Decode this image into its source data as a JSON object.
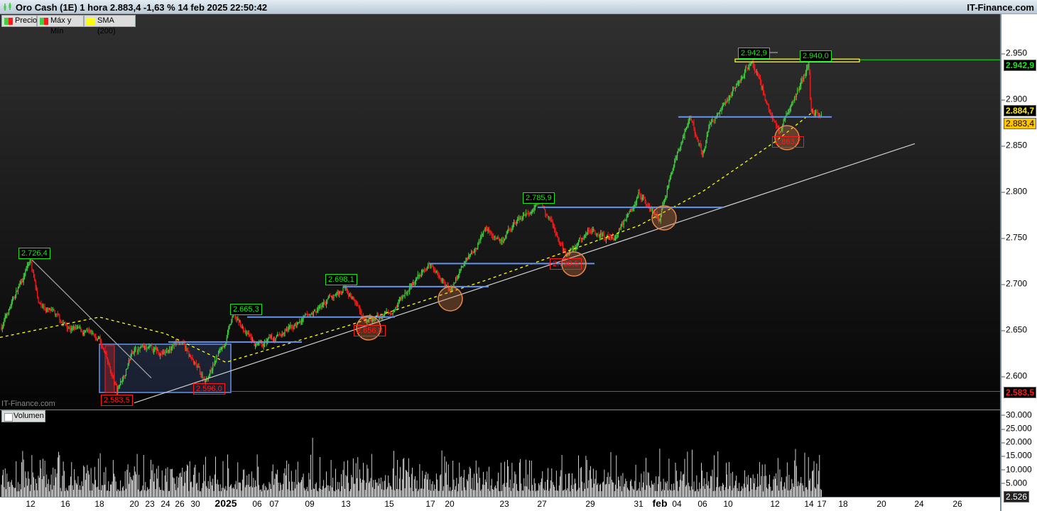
{
  "header": {
    "title": "Oro Cash (1E) 1 hora 2.883,4 -1,63 % 14 feb 2025 22:50:42",
    "brand": "IT-Finance.com",
    "icon": "candlestick-icon"
  },
  "legend": [
    {
      "label": "Precio",
      "colors": [
        "#3fcf3f",
        "#ff1a1a"
      ]
    },
    {
      "label": "Máx y Mín",
      "colors": [
        "#3fcf3f",
        "#ff1a1a"
      ]
    },
    {
      "label": "SMA (200)",
      "colors": [
        "#ffff00"
      ]
    }
  ],
  "watermark": "IT-Finance.com",
  "volume_legend": "Volumen",
  "price_tags": {
    "high_level": "2.942,9",
    "sma": "2.884,7",
    "last": "2.883,4",
    "low_level": "2.583,5",
    "volume_last": "2.526"
  },
  "colors": {
    "up": "#3fcf3f",
    "down": "#ff1a1a",
    "sma": "#ffff00",
    "support": "#6495ed",
    "high_line": "#19e619",
    "low_line": "#ff1a1a",
    "circle": "#e8884a"
  },
  "chart_data": {
    "type": "candlestick",
    "title": "Oro Cash (1E) 1 hora",
    "y_ticks": [
      "2.950",
      "2.900",
      "2.850",
      "2.800",
      "2.750",
      "2.700",
      "2.650",
      "2.600"
    ],
    "ylim": [
      2565,
      2970
    ],
    "volume_ticks": [
      "30.000",
      "25.000",
      "20.000",
      "15.000",
      "10.000",
      "5.000"
    ],
    "volume_ylim": [
      0,
      35000
    ],
    "x_ticks": [
      {
        "label": "12",
        "date": "2024-12-12"
      },
      {
        "label": "16",
        "date": "2024-12-16"
      },
      {
        "label": "18",
        "date": "2024-12-18"
      },
      {
        "label": "20",
        "date": "2024-12-20"
      },
      {
        "label": "23",
        "date": "2024-12-23"
      },
      {
        "label": "24",
        "date": "2024-12-24"
      },
      {
        "label": "26",
        "date": "2024-12-26"
      },
      {
        "label": "30",
        "date": "2024-12-30"
      },
      {
        "label": "2025",
        "date": "2025-01-02",
        "bold": true
      },
      {
        "label": "06",
        "date": "2025-01-06"
      },
      {
        "label": "07",
        "date": "2025-01-07"
      },
      {
        "label": "09",
        "date": "2025-01-09"
      },
      {
        "label": "13",
        "date": "2025-01-13"
      },
      {
        "label": "15",
        "date": "2025-01-15"
      },
      {
        "label": "17",
        "date": "2025-01-17"
      },
      {
        "label": "20",
        "date": "2025-01-20"
      },
      {
        "label": "23",
        "date": "2025-01-23"
      },
      {
        "label": "27",
        "date": "2025-01-27"
      },
      {
        "label": "29",
        "date": "2025-01-29"
      },
      {
        "label": "31",
        "date": "2025-01-31"
      },
      {
        "label": "feb",
        "date": "2025-02-03",
        "bold": true
      },
      {
        "label": "04",
        "date": "2025-02-04"
      },
      {
        "label": "06",
        "date": "2025-02-06"
      },
      {
        "label": "10",
        "date": "2025-02-10"
      },
      {
        "label": "12",
        "date": "2025-02-12"
      },
      {
        "label": "14",
        "date": "2025-02-14"
      },
      {
        "label": "17",
        "date": "2025-02-17"
      },
      {
        "label": "18",
        "date": "2025-02-18"
      },
      {
        "label": "20",
        "date": "2025-02-20"
      },
      {
        "label": "24",
        "date": "2025-02-24"
      },
      {
        "label": "26",
        "date": "2025-02-26"
      }
    ],
    "price_path": [
      [
        "2024-12-09",
        2650
      ],
      [
        "2024-12-12",
        2726
      ],
      [
        "2024-12-13",
        2680
      ],
      [
        "2024-12-16",
        2655
      ],
      [
        "2024-12-18",
        2640
      ],
      [
        "2024-12-19",
        2584
      ],
      [
        "2024-12-20",
        2630
      ],
      [
        "2024-12-24",
        2625
      ],
      [
        "2024-12-26",
        2640
      ],
      [
        "2024-12-30",
        2610
      ],
      [
        "2024-12-31",
        2596
      ],
      [
        "2025-01-02",
        2640
      ],
      [
        "2025-01-03",
        2665
      ],
      [
        "2025-01-06",
        2630
      ],
      [
        "2025-01-07",
        2640
      ],
      [
        "2025-01-09",
        2665
      ],
      [
        "2025-01-13",
        2698
      ],
      [
        "2025-01-14",
        2657
      ],
      [
        "2025-01-15",
        2670
      ],
      [
        "2025-01-17",
        2722
      ],
      [
        "2025-01-20",
        2695
      ],
      [
        "2025-01-22",
        2760
      ],
      [
        "2025-01-23",
        2745
      ],
      [
        "2025-01-24",
        2765
      ],
      [
        "2025-01-27",
        2786
      ],
      [
        "2025-01-28",
        2730
      ],
      [
        "2025-01-29",
        2760
      ],
      [
        "2025-01-30",
        2748
      ],
      [
        "2025-01-31",
        2800
      ],
      [
        "2025-02-03",
        2770
      ],
      [
        "2025-02-04",
        2840
      ],
      [
        "2025-02-05",
        2880
      ],
      [
        "2025-02-06",
        2840
      ],
      [
        "2025-02-07",
        2870
      ],
      [
        "2025-02-10",
        2900
      ],
      [
        "2025-02-11",
        2942.9
      ],
      [
        "2025-02-12",
        2875
      ],
      [
        "2025-02-12T18:00",
        2864
      ],
      [
        "2025-02-14T12:00",
        2940
      ],
      [
        "2025-02-14T22:00",
        2883.4
      ]
    ],
    "sma_200": [
      [
        "2024-12-09",
        2642
      ],
      [
        "2024-12-18",
        2664
      ],
      [
        "2024-12-24",
        2646
      ],
      [
        "2025-01-02",
        2615
      ],
      [
        "2025-01-13",
        2654
      ],
      [
        "2025-01-22",
        2704
      ],
      [
        "2025-01-28",
        2735
      ],
      [
        "2025-01-31",
        2763
      ],
      [
        "2025-02-06",
        2800
      ],
      [
        "2025-02-12",
        2854
      ],
      [
        "2025-02-14T22:00",
        2884.7
      ]
    ],
    "annotations": {
      "highs": [
        {
          "date": "2024-12-12",
          "text": "2.726,4"
        },
        {
          "date": "2025-01-06",
          "text": "2.665,3"
        },
        {
          "date": "2025-01-13",
          "text": "2.698,1"
        },
        {
          "date": "2025-01-27",
          "text": "2.785,9"
        },
        {
          "date": "2025-02-11",
          "text": "2.942,9"
        },
        {
          "date": "2025-02-14",
          "text": "2.940,0"
        }
      ],
      "lows": [
        {
          "date": "2024-12-19",
          "text": "2.583,5"
        },
        {
          "date": "2024-12-31",
          "text": "2.596,0"
        },
        {
          "date": "2025-01-14",
          "text": "2.656,8"
        },
        {
          "date": "2025-01-28",
          "text": "2.730,5"
        },
        {
          "date": "2025-02-12",
          "text": "2.863,7"
        }
      ],
      "support_levels": [
        2637,
        2664,
        2697,
        2722,
        2783,
        2881
      ],
      "resistance_zone": [
        2940,
        2942.9
      ],
      "uptrend_line": [
        [
          "2024-12-20",
          2571
        ],
        [
          "2025-02-24",
          2852
        ]
      ],
      "downtrend_line": [
        [
          "2024-12-12",
          2726
        ],
        [
          "2024-12-20",
          2598
        ]
      ]
    }
  }
}
